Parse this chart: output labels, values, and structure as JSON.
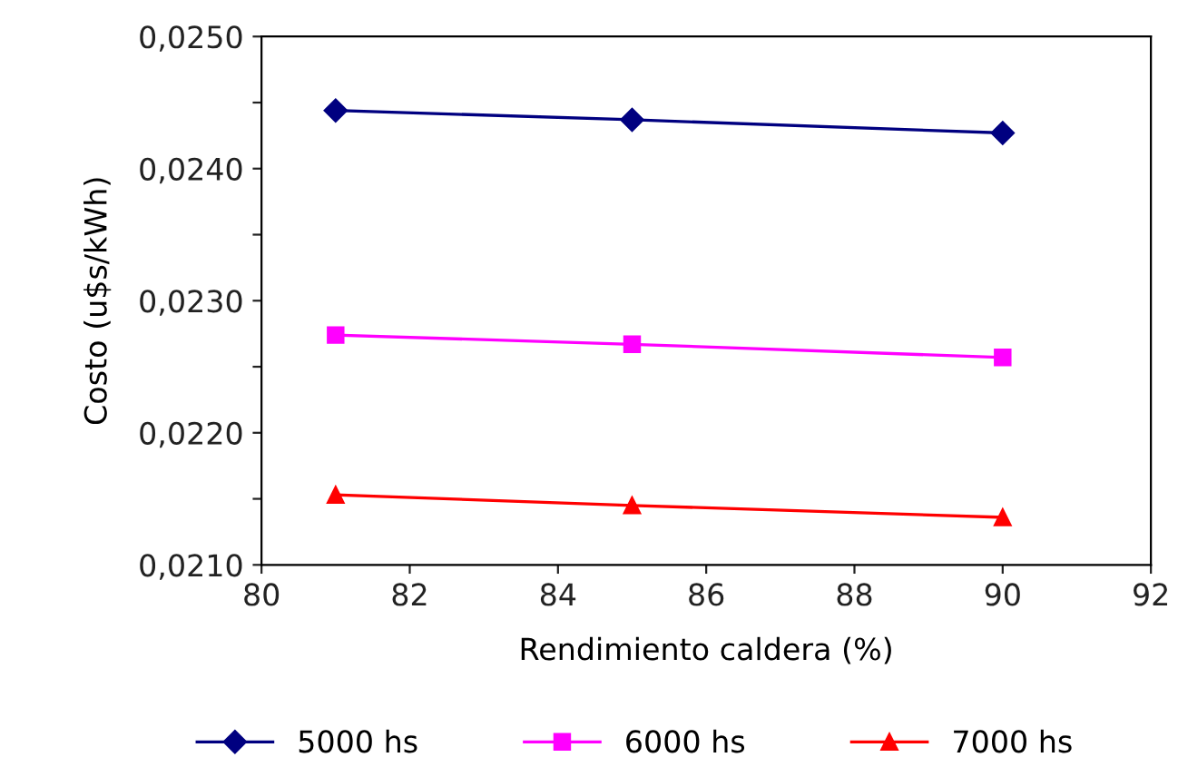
{
  "chart_data": {
    "type": "line",
    "xlabel": "Rendimiento caldera (%)",
    "ylabel": "Costo (u$s/kWh)",
    "x": [
      81,
      85,
      90
    ],
    "series": [
      {
        "name": "5000 hs",
        "color": "#000080",
        "marker": "diamond",
        "values": [
          0.02444,
          0.02437,
          0.02427
        ]
      },
      {
        "name": "6000 hs",
        "color": "#ff00ff",
        "marker": "square",
        "values": [
          0.02274,
          0.02267,
          0.02257
        ]
      },
      {
        "name": "7000 hs",
        "color": "#ff0000",
        "marker": "triangle",
        "values": [
          0.02153,
          0.02145,
          0.02136
        ]
      }
    ],
    "xlim": [
      80,
      92
    ],
    "xticks": [
      80,
      82,
      84,
      86,
      88,
      90,
      92
    ],
    "ylim": [
      0.021,
      0.025
    ],
    "yticks": [
      {
        "value": 0.021,
        "label": "0,0210"
      },
      {
        "value": 0.0215,
        "label": null
      },
      {
        "value": 0.022,
        "label": "0,0220"
      },
      {
        "value": 0.0225,
        "label": null
      },
      {
        "value": 0.023,
        "label": "0,0230"
      },
      {
        "value": 0.0235,
        "label": null
      },
      {
        "value": 0.024,
        "label": "0,0240"
      },
      {
        "value": 0.0245,
        "label": null
      },
      {
        "value": 0.025,
        "label": "0,0250"
      }
    ],
    "grid": false,
    "legend": "bottom",
    "line_style": "solid"
  }
}
